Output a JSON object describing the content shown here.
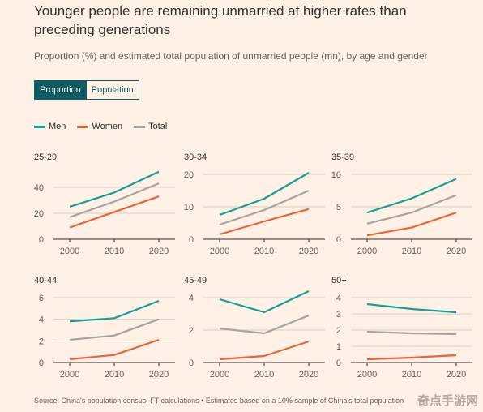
{
  "title": "Younger people are remaining unmarried at higher rates than preceding generations",
  "subtitle": "Proportion (%) and estimated total population of unmarried people (mn), by age and gender",
  "toggle": {
    "active": "Proportion",
    "inactive": "Population"
  },
  "legend": [
    {
      "label": "Men",
      "color": "#1a9e9a"
    },
    {
      "label": "Women",
      "color": "#e8643c"
    },
    {
      "label": "Total",
      "color": "#a7a4a1"
    }
  ],
  "footer": "Source: China's population census, FT calculations • Estimates based on a 10% sample of China's total population",
  "watermark": "奇点手游网",
  "chart_data": [
    {
      "type": "line",
      "title": "25-29",
      "x": [
        2000,
        2010,
        2020
      ],
      "ylim": [
        0,
        50
      ],
      "yticks": [
        0,
        20,
        40
      ],
      "series": [
        {
          "name": "Men",
          "values": [
            25,
            36,
            52
          ]
        },
        {
          "name": "Women",
          "values": [
            9,
            21,
            33
          ]
        },
        {
          "name": "Total",
          "values": [
            17,
            29,
            43
          ]
        }
      ]
    },
    {
      "type": "line",
      "title": "30-34",
      "x": [
        2000,
        2010,
        2020
      ],
      "ylim": [
        0,
        20
      ],
      "yticks": [
        0,
        10,
        20
      ],
      "series": [
        {
          "name": "Men",
          "values": [
            7.5,
            12.5,
            20.5
          ]
        },
        {
          "name": "Women",
          "values": [
            1.5,
            5.5,
            9.3
          ]
        },
        {
          "name": "Total",
          "values": [
            4.5,
            9,
            15
          ]
        }
      ]
    },
    {
      "type": "line",
      "title": "35-39",
      "x": [
        2000,
        2010,
        2020
      ],
      "ylim": [
        0,
        10
      ],
      "yticks": [
        0,
        5,
        10
      ],
      "series": [
        {
          "name": "Men",
          "values": [
            4.1,
            6.3,
            9.3
          ]
        },
        {
          "name": "Women",
          "values": [
            0.6,
            1.8,
            4.1
          ]
        },
        {
          "name": "Total",
          "values": [
            2.4,
            4.1,
            6.8
          ]
        }
      ]
    },
    {
      "type": "line",
      "title": "40-44",
      "x": [
        2000,
        2010,
        2020
      ],
      "ylim": [
        0,
        6
      ],
      "yticks": [
        0,
        2,
        4,
        6
      ],
      "series": [
        {
          "name": "Men",
          "values": [
            3.8,
            4.1,
            5.7
          ]
        },
        {
          "name": "Women",
          "values": [
            0.3,
            0.7,
            2.1
          ]
        },
        {
          "name": "Total",
          "values": [
            2.1,
            2.5,
            4
          ]
        }
      ]
    },
    {
      "type": "line",
      "title": "45-49",
      "x": [
        2000,
        2010,
        2020
      ],
      "ylim": [
        0,
        4
      ],
      "yticks": [
        0,
        2,
        4
      ],
      "series": [
        {
          "name": "Men",
          "values": [
            3.9,
            3.1,
            4.4
          ]
        },
        {
          "name": "Women",
          "values": [
            0.2,
            0.4,
            1.3
          ]
        },
        {
          "name": "Total",
          "values": [
            2.1,
            1.8,
            2.9
          ]
        }
      ]
    },
    {
      "type": "line",
      "title": "50+",
      "x": [
        2000,
        2010,
        2020
      ],
      "ylim": [
        0,
        4
      ],
      "yticks": [
        0,
        1,
        2,
        3,
        4
      ],
      "series": [
        {
          "name": "Men",
          "values": [
            3.6,
            3.3,
            3.1
          ]
        },
        {
          "name": "Women",
          "values": [
            0.2,
            0.3,
            0.45
          ]
        },
        {
          "name": "Total",
          "values": [
            1.9,
            1.8,
            1.75
          ]
        }
      ]
    }
  ]
}
